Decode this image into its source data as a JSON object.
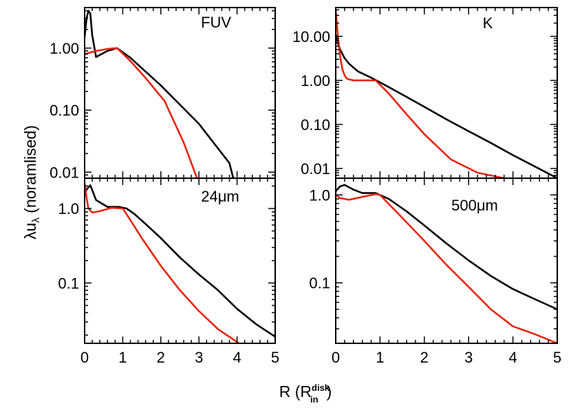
{
  "figure": {
    "ylabel_main": "λu",
    "ylabel_sub": "λ",
    "ylabel_rest": " (noramlised)",
    "xlabel_main": "R (R",
    "xlabel_sup": "disk",
    "xlabel_sub": "in",
    "xlabel_close": ")",
    "colors": {
      "model_a": "#000000",
      "model_b": "#e8240c"
    }
  },
  "chart_data": [
    {
      "type": "line",
      "title": "FUV",
      "panel": "top-left",
      "xlim": [
        0,
        5
      ],
      "ylim": [
        0.008,
        4.5
      ],
      "yscale": "log",
      "xticks": [],
      "yticks": [
        {
          "v": 1,
          "label": "1.00"
        },
        {
          "v": 0.1,
          "label": "0.10"
        },
        {
          "v": 0.01,
          "label": "0.01"
        }
      ],
      "series": [
        {
          "name": "black",
          "color": "#000000",
          "x": [
            0,
            0.05,
            0.1,
            0.15,
            0.2,
            0.3,
            0.6,
            0.85,
            1.2,
            2,
            3,
            3.8,
            3.9
          ],
          "y": [
            1.5,
            3.0,
            4.0,
            3.6,
            1.6,
            0.72,
            0.9,
            1.0,
            0.7,
            0.25,
            0.06,
            0.014,
            0.008
          ]
        },
        {
          "name": "red",
          "color": "#e8240c",
          "x": [
            0,
            0.3,
            0.6,
            0.85,
            1.2,
            1.6,
            2.1,
            2.6,
            2.95
          ],
          "y": [
            0.8,
            0.9,
            0.97,
            1.0,
            0.62,
            0.33,
            0.14,
            0.03,
            0.008
          ]
        }
      ]
    },
    {
      "type": "line",
      "title": "K",
      "panel": "top-right",
      "xlim": [
        0,
        5
      ],
      "ylim": [
        0.006,
        45
      ],
      "yscale": "log",
      "xticks": [],
      "yticks": [
        {
          "v": 10,
          "label": "10.00"
        },
        {
          "v": 1,
          "label": "1.00"
        },
        {
          "v": 0.1,
          "label": "0.10"
        },
        {
          "v": 0.01,
          "label": "0.01"
        }
      ],
      "series": [
        {
          "name": "black",
          "color": "#000000",
          "x": [
            0,
            0.05,
            0.1,
            0.2,
            0.3,
            0.5,
            0.8,
            1.2,
            1.6,
            2,
            2.5,
            3,
            3.5,
            4,
            4.5,
            5
          ],
          "y": [
            11,
            7,
            5,
            3.2,
            2.4,
            1.6,
            1.15,
            0.7,
            0.42,
            0.25,
            0.13,
            0.07,
            0.038,
            0.02,
            0.011,
            0.006
          ]
        },
        {
          "name": "red",
          "color": "#e8240c",
          "x": [
            0,
            0.05,
            0.1,
            0.15,
            0.2,
            0.25,
            0.3,
            0.4,
            0.6,
            0.9,
            1.2,
            1.6,
            2,
            2.6,
            3.2,
            3.8
          ],
          "y": [
            40,
            10,
            3.5,
            1.8,
            1.3,
            1.1,
            1.05,
            1.0,
            1.0,
            1.0,
            0.5,
            0.17,
            0.06,
            0.016,
            0.008,
            0.006
          ]
        }
      ]
    },
    {
      "type": "line",
      "title": "24μm",
      "panel": "bottom-left",
      "xlim": [
        0,
        5
      ],
      "ylim": [
        0.0155,
        2.55
      ],
      "yscale": "log",
      "xticks": [
        0,
        1,
        2,
        3,
        4,
        5
      ],
      "yticks": [
        {
          "v": 1,
          "label": "1.0"
        },
        {
          "v": 0.1,
          "label": "0.1"
        }
      ],
      "series": [
        {
          "name": "black",
          "color": "#000000",
          "x": [
            0,
            0.05,
            0.15,
            0.3,
            0.6,
            0.9,
            1.1,
            1.3,
            1.6,
            2,
            2.5,
            3,
            3.5,
            4,
            4.5,
            5
          ],
          "y": [
            1.5,
            1.8,
            2.05,
            1.3,
            1.05,
            1.05,
            1.0,
            0.85,
            0.62,
            0.4,
            0.22,
            0.13,
            0.08,
            0.045,
            0.028,
            0.019
          ]
        },
        {
          "name": "red",
          "color": "#e8240c",
          "x": [
            0,
            0.05,
            0.1,
            0.2,
            0.4,
            0.7,
            1.0,
            1.2,
            1.5,
            2,
            2.5,
            3,
            3.5,
            4.05
          ],
          "y": [
            2.2,
            1.4,
            1.0,
            0.88,
            0.92,
            1.02,
            1.0,
            0.7,
            0.4,
            0.17,
            0.08,
            0.042,
            0.024,
            0.0155
          ]
        }
      ]
    },
    {
      "type": "line",
      "title": "500μm",
      "panel": "bottom-right",
      "xlim": [
        0,
        5
      ],
      "ylim": [
        0.0205,
        1.55
      ],
      "yscale": "log",
      "xticks": [
        0,
        1,
        2,
        3,
        4,
        5
      ],
      "yticks": [
        {
          "v": 1,
          "label": "1.0"
        },
        {
          "v": 0.1,
          "label": "0.1"
        }
      ],
      "series": [
        {
          "name": "black",
          "color": "#000000",
          "x": [
            0,
            0.1,
            0.2,
            0.4,
            0.6,
            0.9,
            1.2,
            1.6,
            2,
            2.5,
            3,
            3.5,
            4,
            4.5,
            5
          ],
          "y": [
            1.1,
            1.25,
            1.3,
            1.15,
            1.05,
            1.05,
            0.9,
            0.65,
            0.45,
            0.28,
            0.18,
            0.12,
            0.085,
            0.065,
            0.05
          ]
        },
        {
          "name": "red",
          "color": "#e8240c",
          "x": [
            0,
            0.1,
            0.3,
            0.6,
            0.9,
            1.0,
            1.5,
            2,
            2.5,
            3,
            3.5,
            4,
            4.5,
            5
          ],
          "y": [
            1.0,
            0.92,
            0.88,
            0.95,
            1.02,
            1.0,
            0.55,
            0.3,
            0.16,
            0.09,
            0.05,
            0.032,
            0.026,
            0.0205
          ]
        }
      ]
    }
  ]
}
